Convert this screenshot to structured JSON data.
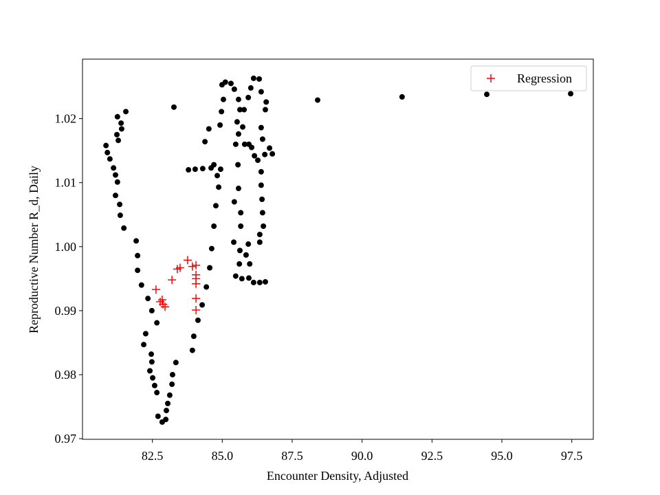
{
  "chart_data": {
    "type": "scatter",
    "xlabel": "Encounter Density, Adjusted",
    "ylabel": "Reproductive Number R_d, Daily",
    "xlim": [
      80.0,
      98.27
    ],
    "ylim": [
      0.9699,
      1.0293
    ],
    "xticks": [
      82.5,
      {
        "value": 85,
        "label": "85.0"
      },
      87.5,
      {
        "value": 90,
        "label": "90.0"
      },
      92.5,
      {
        "value": 95,
        "label": "95.0"
      },
      97.5
    ],
    "yticks": [
      0.97,
      0.98,
      0.99,
      {
        "value": 1,
        "label": "1.00"
      },
      1.01,
      1.02
    ],
    "legend": "upper right",
    "series": [
      {
        "color": "#000000",
        "marker": "o",
        "x": [
          80.84,
          80.89,
          80.98,
          81.11,
          81.18,
          81.25,
          81.18,
          81.33,
          81.35,
          81.48,
          81.23,
          81.28,
          81.38,
          81.4,
          81.25,
          81.55,
          81.92,
          81.97,
          81.97,
          82.11,
          82.34,
          82.48,
          82.66,
          82.26,
          82.19,
          82.46,
          82.48,
          82.41,
          82.51,
          82.58,
          82.66,
          82.7,
          82.85,
          82.98,
          83.0,
          83.05,
          83.12,
          83.2,
          83.22,
          83.34,
          83.93,
          83.98,
          84.13,
          84.28,
          84.43,
          84.55,
          84.62,
          84.7,
          84.77,
          84.87,
          83.79,
          84.03,
          84.3,
          84.6,
          84.94,
          84.38,
          84.52,
          84.7,
          84.82,
          84.92,
          84.97,
          85.04,
          84.99,
          85.11,
          85.31,
          85.43,
          85.58,
          85.63,
          85.53,
          85.58,
          85.48,
          85.56,
          85.58,
          85.43,
          85.66,
          85.66,
          85.41,
          85.63,
          85.61,
          85.48,
          85.7,
          85.95,
          86.12,
          86.34,
          86.54,
          85.98,
          85.85,
          85.93,
          85.95,
          86.05,
          86.15,
          86.27,
          86.52,
          86.44,
          86.39,
          86.54,
          86.57,
          86.39,
          86.32,
          86.12,
          86.02,
          85.93,
          85.78,
          85.73,
          85.8,
          86.39,
          86.39,
          86.42,
          86.44,
          86.47,
          86.34,
          86.34,
          86.79,
          86.69,
          83.27,
          88.41,
          91.43,
          94.46,
          97.46
        ],
        "values": [
          1.0158,
          1.0147,
          1.0137,
          1.0123,
          1.0112,
          1.0101,
          1.008,
          1.0066,
          1.0049,
          1.0029,
          1.0175,
          1.0166,
          1.0193,
          1.0184,
          1.0203,
          1.0211,
          1.0009,
          0.9986,
          0.9963,
          0.994,
          0.9919,
          0.99,
          0.9881,
          0.9864,
          0.9847,
          0.9832,
          0.982,
          0.9806,
          0.9795,
          0.9783,
          0.9772,
          0.9735,
          0.9726,
          0.973,
          0.9744,
          0.9755,
          0.9768,
          0.9785,
          0.98,
          0.9819,
          0.9838,
          0.986,
          0.9885,
          0.9909,
          0.9937,
          0.9967,
          0.9997,
          1.0032,
          1.0064,
          1.0093,
          1.012,
          1.0121,
          1.0122,
          1.0123,
          1.0121,
          1.0164,
          1.0184,
          1.0128,
          1.0111,
          1.019,
          1.0211,
          1.023,
          1.0253,
          1.0257,
          1.0255,
          1.0246,
          1.023,
          1.0214,
          1.0195,
          1.0176,
          1.016,
          1.0128,
          1.0091,
          1.007,
          1.0053,
          1.0032,
          1.0007,
          0.9994,
          0.9973,
          0.9954,
          0.995,
          0.9951,
          0.9944,
          0.9944,
          0.9945,
          0.9973,
          0.9987,
          1.0004,
          1.016,
          1.0155,
          1.0142,
          1.0135,
          1.0144,
          1.0168,
          1.0186,
          1.0214,
          1.0226,
          1.0242,
          1.0262,
          1.0263,
          1.0248,
          1.0233,
          1.0214,
          1.0187,
          1.016,
          1.0117,
          1.0096,
          1.0074,
          1.0053,
          1.0032,
          1.0019,
          1.0007,
          1.0145,
          1.0154,
          1.0218,
          1.0229,
          1.0234,
          1.0238,
          1.0239
        ]
      },
      {
        "name": "Regression",
        "color": "#ff0000",
        "marker": "+",
        "x": [
          82.63,
          82.78,
          82.85,
          82.88,
          82.95,
          83.2,
          83.39,
          83.49,
          83.76,
          83.93,
          84.06,
          84.06,
          84.06,
          84.06,
          84.06,
          84.06
        ],
        "values": [
          0.9933,
          0.9914,
          0.9917,
          0.991,
          0.9906,
          0.9948,
          0.9965,
          0.9967,
          0.9979,
          0.9969,
          0.9971,
          0.9956,
          0.995,
          0.9942,
          0.9919,
          0.9901
        ]
      }
    ]
  }
}
